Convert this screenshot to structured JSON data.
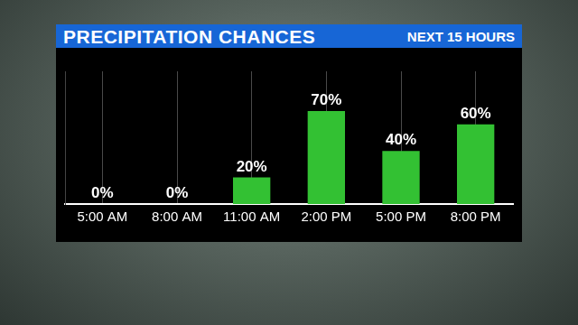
{
  "chart_data": {
    "type": "bar",
    "title": "PRECIPITATION CHANCES",
    "subtitle": "NEXT 15 HOURS",
    "categories": [
      "5:00 AM",
      "8:00 AM",
      "11:00 AM",
      "2:00 PM",
      "5:00 PM",
      "8:00 PM"
    ],
    "values": [
      0,
      0,
      20,
      70,
      40,
      60
    ],
    "value_labels": [
      "0%",
      "0%",
      "20%",
      "70%",
      "40%",
      "60%"
    ],
    "color": "#33c133",
    "ylim": [
      0,
      100
    ],
    "grid": true,
    "data_labels": true,
    "tick_labels": "x"
  }
}
